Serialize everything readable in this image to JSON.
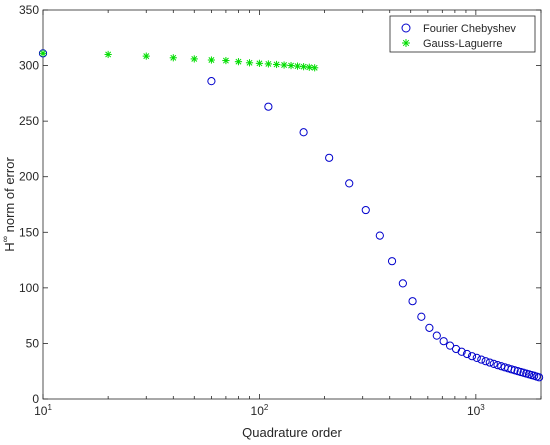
{
  "chart_data": {
    "type": "scatter",
    "xlabel": "Quadrature order",
    "ylabel_base": "H",
    "ylabel_sup": "∞",
    "ylabel_rest": " norm of error",
    "xscale": "log",
    "xlim": [
      10,
      2000
    ],
    "ylim": [
      0,
      350
    ],
    "grid": false,
    "legend_position": "top-right",
    "x_ticks": [
      {
        "value": 10,
        "base": "10",
        "exp": "1"
      },
      {
        "value": 100,
        "base": "10",
        "exp": "2"
      },
      {
        "value": 1000,
        "base": "10",
        "exp": "3"
      }
    ],
    "y_ticks": [
      {
        "value": 0,
        "label": "0"
      },
      {
        "value": 50,
        "label": "50"
      },
      {
        "value": 100,
        "label": "100"
      },
      {
        "value": 150,
        "label": "150"
      },
      {
        "value": 200,
        "label": "200"
      },
      {
        "value": 250,
        "label": "250"
      },
      {
        "value": 300,
        "label": "300"
      },
      {
        "value": 350,
        "label": "350"
      }
    ],
    "series": [
      {
        "name": "Fourier Chebyshev",
        "marker": "circle",
        "color": "#0000cc",
        "x": [
          10,
          60,
          110,
          160,
          210,
          260,
          310,
          360,
          410,
          460,
          510,
          560,
          610,
          660,
          710,
          760,
          810,
          860,
          910,
          960,
          1010,
          1060,
          1110,
          1160,
          1210,
          1260,
          1310,
          1360,
          1410,
          1460,
          1510,
          1560,
          1610,
          1660,
          1710,
          1760,
          1810,
          1860,
          1910,
          1960
        ],
        "y": [
          311,
          286,
          263,
          240,
          217,
          194,
          170,
          147,
          124,
          104,
          88,
          74,
          64,
          57,
          52,
          48,
          45,
          42.5,
          40.5,
          38.5,
          37,
          35.5,
          34,
          32.8,
          31.6,
          30.5,
          29.5,
          28.5,
          27.6,
          26.7,
          25.9,
          25.1,
          24.3,
          23.6,
          22.9,
          22.2,
          21.5,
          20.9,
          20.2,
          19.5
        ]
      },
      {
        "name": "Gauss-Laguerre",
        "marker": "asterisk",
        "color": "#00dd00",
        "x": [
          10,
          20,
          30,
          40,
          50,
          60,
          70,
          80,
          90,
          100,
          110,
          120,
          130,
          140,
          150,
          160,
          170,
          180
        ],
        "y": [
          311,
          310,
          308.5,
          307,
          306,
          305,
          304.5,
          303.5,
          302.5,
          302,
          301.5,
          301,
          300.5,
          300,
          299.5,
          299,
          298.5,
          298
        ]
      }
    ]
  }
}
